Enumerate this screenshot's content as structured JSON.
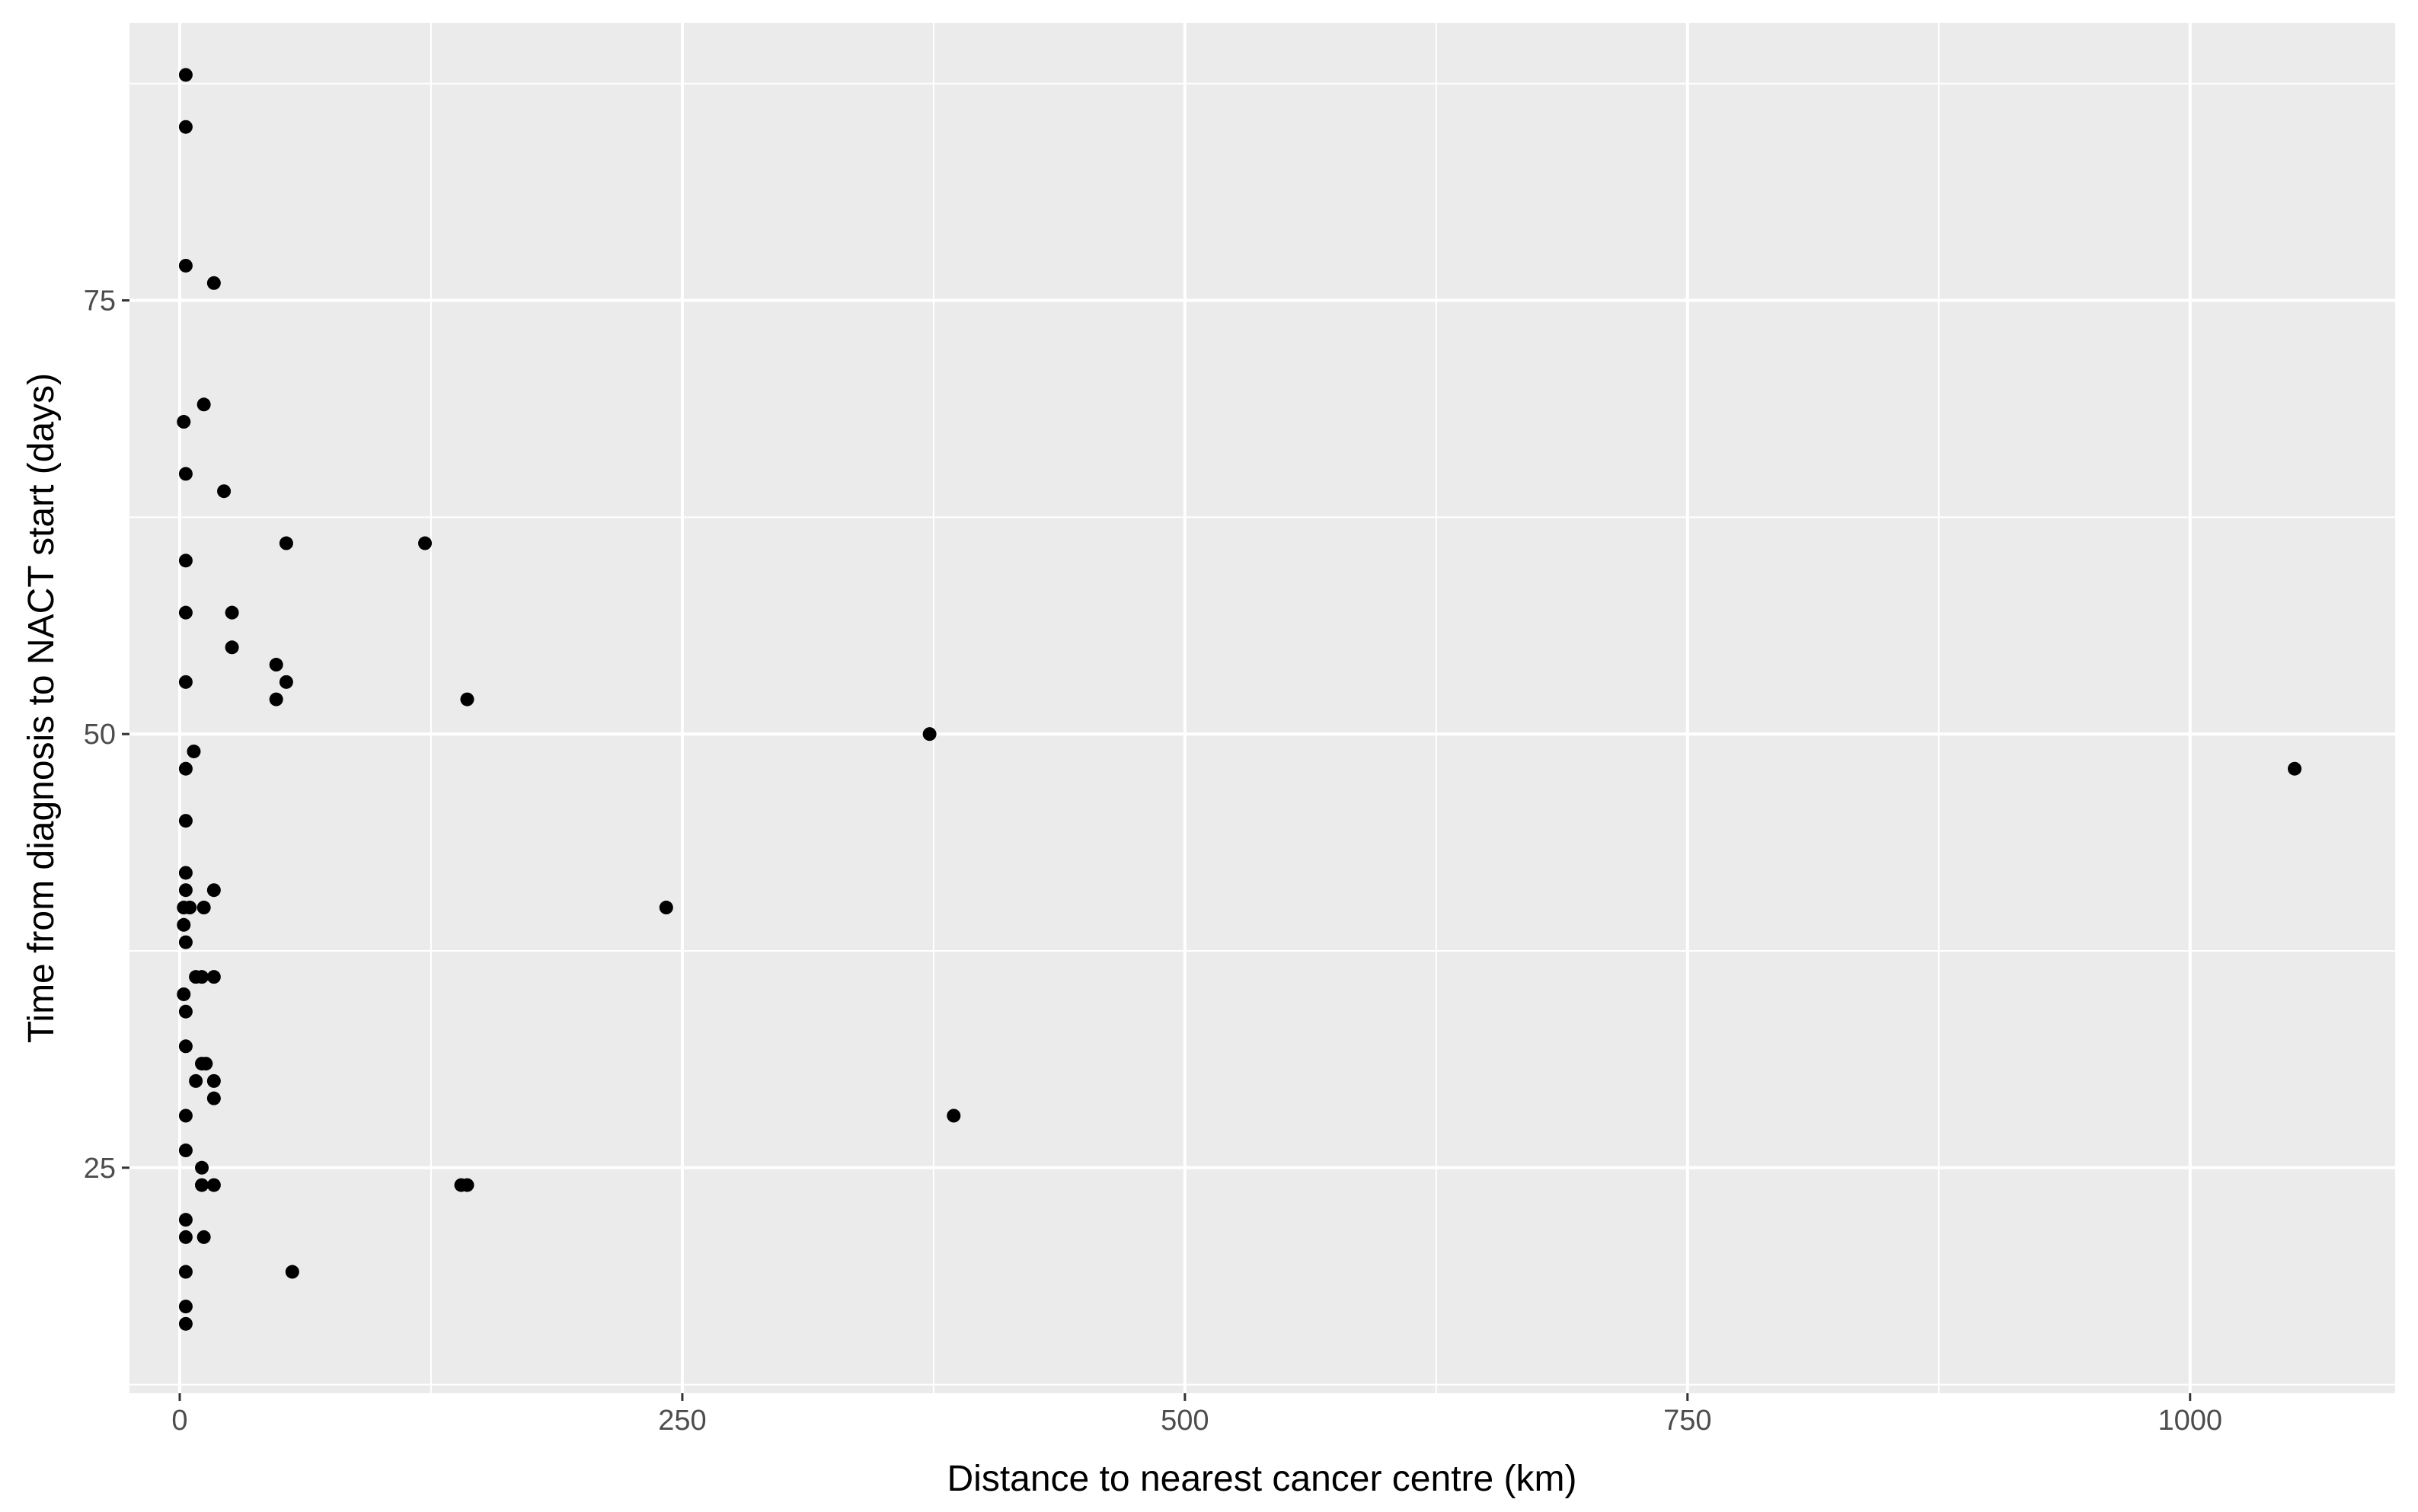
{
  "chart_data": {
    "type": "scatter",
    "title": "",
    "xlabel": "Distance to nearest cancer centre (km)",
    "ylabel": "Time from diagnosis to NACT start (days)",
    "xlim": [
      -25,
      1102
    ],
    "ylim": [
      12,
      91
    ],
    "x_ticks": [
      0,
      250,
      500,
      750,
      1000
    ],
    "y_ticks": [
      25,
      50,
      75
    ],
    "grid": true,
    "legend": "none",
    "colors": {
      "panel_background": "#ebebeb",
      "grid": "#ffffff",
      "point": "#000000",
      "tick": "#333333"
    },
    "points": [
      {
        "x": 3,
        "y": 88
      },
      {
        "x": 3,
        "y": 85
      },
      {
        "x": 3,
        "y": 77
      },
      {
        "x": 17,
        "y": 76
      },
      {
        "x": 12,
        "y": 69
      },
      {
        "x": 2,
        "y": 68
      },
      {
        "x": 3,
        "y": 65
      },
      {
        "x": 22,
        "y": 64
      },
      {
        "x": 53,
        "y": 61
      },
      {
        "x": 122,
        "y": 61
      },
      {
        "x": 3,
        "y": 60
      },
      {
        "x": 3,
        "y": 57
      },
      {
        "x": 26,
        "y": 57
      },
      {
        "x": 26,
        "y": 55
      },
      {
        "x": 48,
        "y": 54
      },
      {
        "x": 3,
        "y": 53
      },
      {
        "x": 53,
        "y": 53
      },
      {
        "x": 48,
        "y": 52
      },
      {
        "x": 143,
        "y": 52
      },
      {
        "x": 373,
        "y": 50
      },
      {
        "x": 7,
        "y": 49
      },
      {
        "x": 3,
        "y": 48
      },
      {
        "x": 1052,
        "y": 48
      },
      {
        "x": 3,
        "y": 45
      },
      {
        "x": 3,
        "y": 42
      },
      {
        "x": 3,
        "y": 41
      },
      {
        "x": 17,
        "y": 41
      },
      {
        "x": 2,
        "y": 40
      },
      {
        "x": 5,
        "y": 40
      },
      {
        "x": 12,
        "y": 40
      },
      {
        "x": 242,
        "y": 40
      },
      {
        "x": 2,
        "y": 39
      },
      {
        "x": 3,
        "y": 38
      },
      {
        "x": 8,
        "y": 36
      },
      {
        "x": 11,
        "y": 36
      },
      {
        "x": 17,
        "y": 36
      },
      {
        "x": 2,
        "y": 35
      },
      {
        "x": 3,
        "y": 34
      },
      {
        "x": 3,
        "y": 32
      },
      {
        "x": 11,
        "y": 31
      },
      {
        "x": 13,
        "y": 31
      },
      {
        "x": 8,
        "y": 30
      },
      {
        "x": 17,
        "y": 30
      },
      {
        "x": 17,
        "y": 29
      },
      {
        "x": 3,
        "y": 28
      },
      {
        "x": 385,
        "y": 28
      },
      {
        "x": 3,
        "y": 26
      },
      {
        "x": 11,
        "y": 25
      },
      {
        "x": 11,
        "y": 24
      },
      {
        "x": 17,
        "y": 24
      },
      {
        "x": 140,
        "y": 24
      },
      {
        "x": 143,
        "y": 24
      },
      {
        "x": 3,
        "y": 22
      },
      {
        "x": 3,
        "y": 21
      },
      {
        "x": 12,
        "y": 21
      },
      {
        "x": 3,
        "y": 19
      },
      {
        "x": 56,
        "y": 19
      },
      {
        "x": 3,
        "y": 17
      },
      {
        "x": 3,
        "y": 16
      }
    ]
  }
}
